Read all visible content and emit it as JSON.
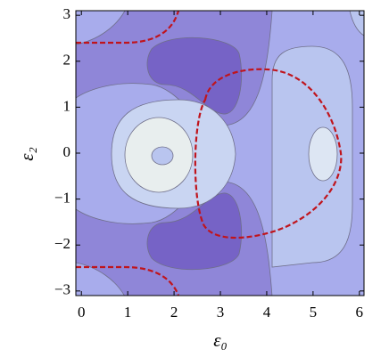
{
  "chart_data": {
    "type": "contour",
    "x_label": "ε₀",
    "y_label": "ε₂",
    "xlim": [
      -0.12,
      6.1
    ],
    "ylim": [
      -3.1,
      3.1
    ],
    "xticks": [
      0,
      1,
      2,
      3,
      4,
      5,
      6
    ],
    "yticks": [
      {
        "value": -3,
        "label": "−3"
      },
      {
        "value": -2,
        "label": "−2"
      },
      {
        "value": -1,
        "label": "−1"
      },
      0,
      1,
      2,
      3
    ]
  }
}
